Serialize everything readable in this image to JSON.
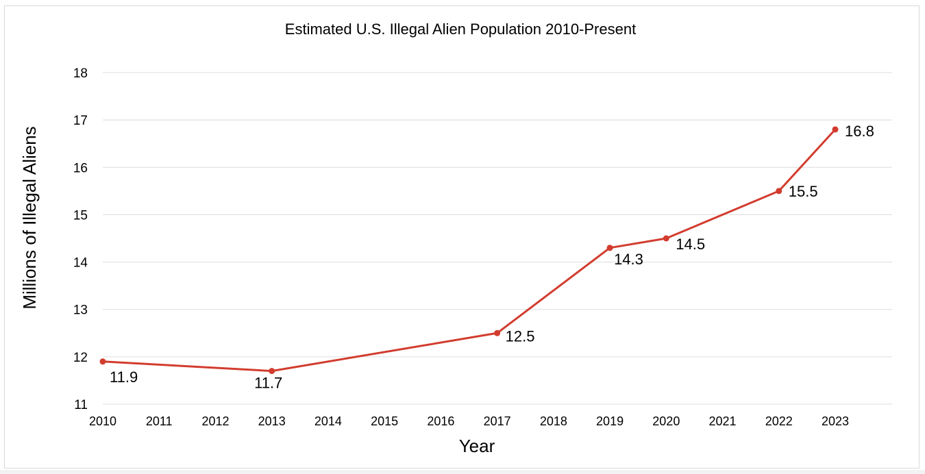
{
  "chart_data": {
    "type": "line",
    "title": "Estimated U.S. Illegal Alien Population 2010-Present",
    "xlabel": "Year",
    "ylabel": "Millions of Illegal Aliens",
    "categories": [
      "2010",
      "2011",
      "2012",
      "2013",
      "2014",
      "2015",
      "2016",
      "2017",
      "2018",
      "2019",
      "2020",
      "2021",
      "2022",
      "2023"
    ],
    "y_ticks": [
      "11",
      "12",
      "13",
      "14",
      "15",
      "16",
      "17",
      "18"
    ],
    "ylim": [
      11,
      18
    ],
    "grid": true,
    "series": [
      {
        "name": "Estimated population",
        "points": [
          {
            "x": "2010",
            "y": 11.9,
            "label": "11.9"
          },
          {
            "x": "2013",
            "y": 11.7,
            "label": "11.7"
          },
          {
            "x": "2017",
            "y": 12.5,
            "label": "12.5"
          },
          {
            "x": "2019",
            "y": 14.3,
            "label": "14.3"
          },
          {
            "x": "2020",
            "y": 14.5,
            "label": "14.5"
          },
          {
            "x": "2022",
            "y": 15.5,
            "label": "15.5"
          },
          {
            "x": "2023",
            "y": 16.8,
            "label": "16.8"
          }
        ]
      }
    ],
    "colors": {
      "line": "#d23c2e",
      "grid": "#dcdcdc",
      "text": "#000000"
    }
  }
}
